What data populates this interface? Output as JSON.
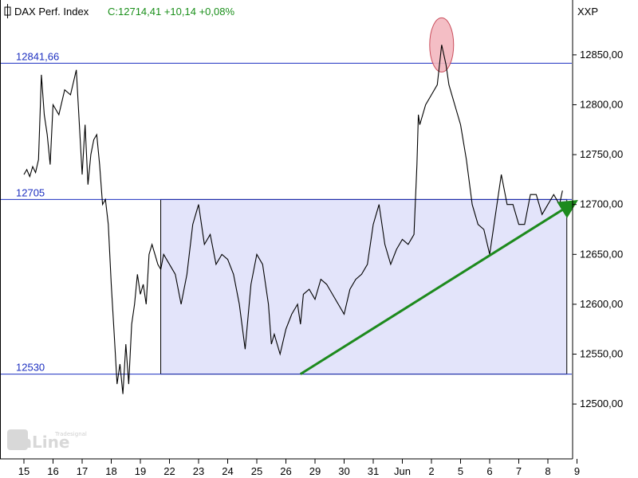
{
  "header": {
    "symbol": "DAX Perf. Index",
    "quote": "C:12714,41 +10,14 +0,08%",
    "axis_code": "XXP"
  },
  "watermark": {
    "small": "Tradesignal",
    "big": "onLine"
  },
  "colors": {
    "price": "#000000",
    "level_line": "#1c2fc0",
    "range_fill": "#e3e4fa",
    "trend_arrow": "#1d8a1d",
    "highlight": "#f3b7bf"
  },
  "chart_data": {
    "type": "line",
    "title": "DAX Perf. Index",
    "ylim": [
      12445,
      12905
    ],
    "y_ticks": [
      12500,
      12550,
      12600,
      12650,
      12700,
      12750,
      12800,
      12850
    ],
    "y_tick_labels": [
      "12500,00",
      "12550,00",
      "12600,00",
      "12650,00",
      "12700,00",
      "12750,00",
      "12800,00",
      "12850,00"
    ],
    "x_tick_labels": [
      "15",
      "16",
      "17",
      "18",
      "19",
      "22",
      "23",
      "24",
      "25",
      "26",
      "29",
      "30",
      "31",
      "Jun",
      "2",
      "5",
      "6",
      "7",
      "8",
      "9"
    ],
    "levels": [
      {
        "value": 12841.66,
        "label": "12841,66"
      },
      {
        "value": 12705,
        "label": "12705"
      },
      {
        "value": 12530,
        "label": "12530"
      }
    ],
    "range_box": {
      "x_start": 4.7,
      "x_end": 18.65,
      "y_low": 12530,
      "y_high": 12705
    },
    "trendline": {
      "start": [
        9.5,
        12530
      ],
      "end": [
        18.9,
        12702
      ]
    },
    "highlight": {
      "x": 14.35,
      "y": 12860
    },
    "series": [
      {
        "x": [
          0,
          0.1,
          0.2,
          0.3,
          0.4,
          0.5,
          0.6,
          0.7,
          0.8,
          0.9,
          1.0,
          1.2,
          1.4,
          1.6,
          1.8,
          2.0,
          2.1,
          2.2,
          2.3,
          2.4,
          2.5,
          2.6,
          2.7,
          2.8,
          2.9,
          3.0,
          3.1,
          3.2,
          3.3,
          3.4,
          3.5,
          3.6,
          3.7,
          3.8,
          3.9,
          4.0,
          4.1,
          4.2,
          4.3,
          4.4,
          4.5,
          4.6,
          4.7,
          4.8,
          5.0,
          5.2,
          5.4,
          5.6,
          5.8,
          6.0,
          6.2,
          6.4,
          6.6,
          6.8,
          7.0,
          7.2,
          7.4,
          7.6,
          7.8,
          8.0,
          8.2,
          8.4,
          8.5,
          8.6,
          8.8,
          9.0,
          9.2,
          9.4,
          9.5,
          9.6,
          9.8,
          10.0,
          10.2,
          10.4,
          10.6,
          10.8,
          11.0,
          11.2,
          11.4,
          11.6,
          11.8,
          12.0,
          12.2,
          12.4,
          12.6,
          12.8,
          13.0,
          13.2,
          13.4,
          13.5,
          13.55,
          13.6,
          13.8,
          14.0,
          14.2,
          14.35,
          14.5,
          14.6,
          14.8,
          15.0,
          15.2,
          15.4,
          15.6,
          15.8,
          16.0,
          16.2,
          16.4,
          16.6,
          16.8,
          17.0,
          17.2,
          17.4,
          17.6,
          17.8,
          18.0,
          18.2,
          18.4,
          18.5
        ],
        "y": [
          12730,
          12735,
          12728,
          12738,
          12732,
          12745,
          12830,
          12790,
          12770,
          12740,
          12800,
          12790,
          12815,
          12810,
          12835,
          12730,
          12780,
          12720,
          12750,
          12765,
          12770,
          12740,
          12700,
          12705,
          12680,
          12620,
          12570,
          12520,
          12540,
          12510,
          12560,
          12520,
          12580,
          12600,
          12630,
          12610,
          12620,
          12600,
          12650,
          12660,
          12650,
          12640,
          12635,
          12650,
          12640,
          12630,
          12600,
          12630,
          12680,
          12700,
          12660,
          12670,
          12640,
          12650,
          12645,
          12630,
          12600,
          12555,
          12620,
          12650,
          12640,
          12600,
          12560,
          12570,
          12550,
          12575,
          12590,
          12600,
          12580,
          12610,
          12615,
          12605,
          12625,
          12620,
          12610,
          12600,
          12590,
          12615,
          12625,
          12630,
          12640,
          12680,
          12700,
          12660,
          12640,
          12655,
          12665,
          12660,
          12670,
          12740,
          12790,
          12780,
          12800,
          12810,
          12820,
          12860,
          12840,
          12820,
          12800,
          12780,
          12745,
          12700,
          12680,
          12675,
          12650,
          12690,
          12730,
          12700,
          12700,
          12680,
          12680,
          12710,
          12710,
          12690,
          12700,
          12710,
          12700,
          12714
        ]
      }
    ]
  }
}
